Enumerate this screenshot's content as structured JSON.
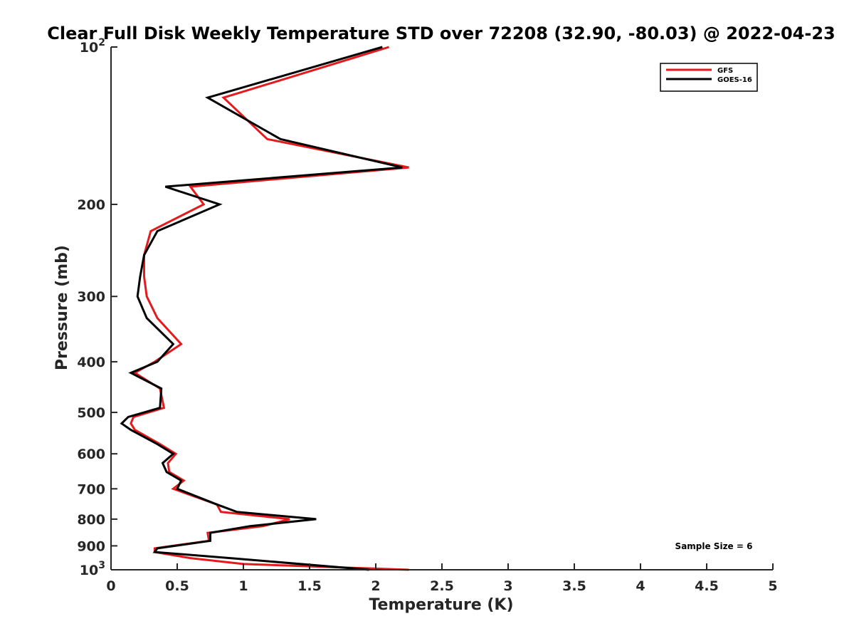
{
  "chart_data": {
    "type": "line",
    "title": "Clear Full Disk Weekly Temperature STD over 72208 (32.90, -80.03) @ 2022-04-23",
    "xlabel": "Temperature (K)",
    "ylabel": "Pressure (mb)",
    "xlim": [
      0,
      5
    ],
    "ylim": [
      100,
      1000
    ],
    "y_scale": "log",
    "y_reversed": true,
    "x_ticks": [
      0,
      0.5,
      1,
      1.5,
      2,
      2.5,
      3,
      3.5,
      4,
      4.5,
      5
    ],
    "x_tick_labels": [
      "0",
      "0.5",
      "1",
      "1.5",
      "2",
      "2.5",
      "3",
      "3.5",
      "4",
      "4.5",
      "5"
    ],
    "y_ticks": [
      100,
      200,
      300,
      400,
      500,
      600,
      700,
      800,
      900,
      1000
    ],
    "y_tick_labels": [
      {
        "base": "10",
        "exp": "2"
      },
      {
        "base": "200",
        "exp": ""
      },
      {
        "base": "300",
        "exp": ""
      },
      {
        "base": "400",
        "exp": ""
      },
      {
        "base": "500",
        "exp": ""
      },
      {
        "base": "600",
        "exp": ""
      },
      {
        "base": "700",
        "exp": ""
      },
      {
        "base": "800",
        "exp": ""
      },
      {
        "base": "900",
        "exp": ""
      },
      {
        "base": "10",
        "exp": "3"
      }
    ],
    "grid": false,
    "legend_position": "top-right",
    "series": [
      {
        "name": "GFS",
        "color": "#e41a1c",
        "points": [
          [
            2.1,
            100
          ],
          [
            0.85,
            125
          ],
          [
            1.18,
            150
          ],
          [
            2.25,
            170
          ],
          [
            0.6,
            185
          ],
          [
            0.7,
            200
          ],
          [
            0.3,
            225
          ],
          [
            0.25,
            250
          ],
          [
            0.25,
            275
          ],
          [
            0.27,
            300
          ],
          [
            0.35,
            330
          ],
          [
            0.53,
            370
          ],
          [
            0.33,
            400
          ],
          [
            0.18,
            420
          ],
          [
            0.37,
            450
          ],
          [
            0.4,
            490
          ],
          [
            0.17,
            510
          ],
          [
            0.15,
            525
          ],
          [
            0.18,
            540
          ],
          [
            0.37,
            575
          ],
          [
            0.49,
            600
          ],
          [
            0.43,
            625
          ],
          [
            0.44,
            650
          ],
          [
            0.55,
            675
          ],
          [
            0.47,
            700
          ],
          [
            0.8,
            750
          ],
          [
            0.83,
            775
          ],
          [
            1.35,
            800
          ],
          [
            1.15,
            825
          ],
          [
            0.73,
            850
          ],
          [
            0.74,
            880
          ],
          [
            0.33,
            910
          ],
          [
            0.33,
            925
          ],
          [
            0.6,
            950
          ],
          [
            1.0,
            975
          ],
          [
            2.25,
            1000
          ]
        ]
      },
      {
        "name": "GOES-16",
        "color": "#000000",
        "points": [
          [
            2.05,
            100
          ],
          [
            0.73,
            125
          ],
          [
            1.28,
            150
          ],
          [
            2.2,
            170
          ],
          [
            0.41,
            185
          ],
          [
            0.82,
            200
          ],
          [
            0.35,
            225
          ],
          [
            0.25,
            250
          ],
          [
            0.22,
            275
          ],
          [
            0.2,
            300
          ],
          [
            0.27,
            330
          ],
          [
            0.47,
            370
          ],
          [
            0.35,
            400
          ],
          [
            0.15,
            420
          ],
          [
            0.38,
            450
          ],
          [
            0.37,
            490
          ],
          [
            0.13,
            510
          ],
          [
            0.08,
            525
          ],
          [
            0.15,
            540
          ],
          [
            0.35,
            575
          ],
          [
            0.47,
            600
          ],
          [
            0.39,
            625
          ],
          [
            0.42,
            650
          ],
          [
            0.53,
            675
          ],
          [
            0.5,
            700
          ],
          [
            0.8,
            750
          ],
          [
            0.95,
            775
          ],
          [
            1.55,
            800
          ],
          [
            1.05,
            825
          ],
          [
            0.75,
            850
          ],
          [
            0.75,
            880
          ],
          [
            0.35,
            910
          ],
          [
            0.33,
            925
          ],
          [
            0.9,
            950
          ],
          [
            1.95,
            1000
          ]
        ]
      }
    ],
    "annotations": [
      {
        "text": "Sample Size = 6"
      }
    ]
  }
}
